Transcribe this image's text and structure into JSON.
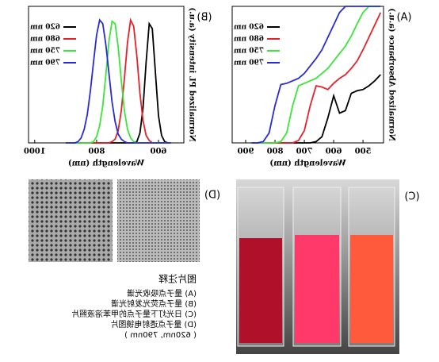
{
  "chart_data": [
    {
      "type": "line",
      "panel_label": "(A)",
      "xlabel": "Wavelength (nm)",
      "ylabel": "Normalized Absorbance (a.u.)",
      "x": [
        440,
        460,
        480,
        500,
        520,
        540,
        560,
        580,
        600,
        620,
        640,
        660,
        680,
        700,
        720,
        740,
        760,
        780,
        800,
        820,
        840,
        860,
        880
      ],
      "xlim": [
        430,
        946
      ],
      "xticks": [
        500,
        600,
        700,
        800,
        900
      ],
      "ylim": [
        0,
        1.1
      ],
      "legend": "upper right",
      "series": [
        {
          "name": "620 nm",
          "color": "#000000",
          "values": [
            0.55,
            0.5,
            0.46,
            0.43,
            0.42,
            0.4,
            0.26,
            0.24,
            0.38,
            0.2,
            0.05,
            0.01,
            0,
            0,
            0,
            0,
            0,
            0,
            0,
            0,
            0,
            0,
            0
          ]
        },
        {
          "name": "680 nm",
          "color": "#e8202a",
          "values": [
            1.05,
            0.95,
            0.85,
            0.75,
            0.66,
            0.6,
            0.55,
            0.52,
            0.48,
            0.43,
            0.45,
            0.46,
            0.3,
            0.1,
            0.02,
            0,
            0,
            0,
            0,
            0,
            0,
            0,
            0
          ]
        },
        {
          "name": "750 nm",
          "color": "#39e639",
          "values": [
            1.1,
            1.1,
            1.1,
            1.05,
            0.96,
            0.86,
            0.78,
            0.72,
            0.66,
            0.6,
            0.56,
            0.52,
            0.5,
            0.48,
            0.46,
            0.3,
            0.08,
            0.01,
            0,
            0,
            0,
            0,
            0
          ]
        },
        {
          "name": "790 nm",
          "color": "#2a2ad8",
          "values": [
            1.1,
            1.1,
            1.1,
            1.1,
            1.1,
            1.1,
            1.1,
            1.05,
            0.95,
            0.85,
            0.75,
            0.68,
            0.62,
            0.56,
            0.52,
            0.5,
            0.48,
            0.47,
            0.3,
            0.08,
            0.01,
            0,
            0
          ]
        }
      ]
    },
    {
      "type": "line",
      "panel_label": "(B)",
      "xlabel": "Wavelength (nm)",
      "ylabel": "Normalized PL intensity (a.u.)",
      "x": [
        560,
        570,
        580,
        590,
        600,
        610,
        620,
        630,
        640,
        650,
        660,
        670,
        680,
        690,
        700,
        710,
        720,
        730,
        740,
        750,
        760,
        770,
        780,
        790,
        800,
        810,
        820,
        830,
        840,
        850,
        860,
        870,
        880,
        890,
        900
      ],
      "xlim": [
        518,
        1020
      ],
      "xticks": [
        600,
        800,
        1000
      ],
      "ylim": [
        0,
        1.1
      ],
      "legend": "upper right",
      "series": [
        {
          "name": "620 nm",
          "color": "#000000",
          "values": [
            0,
            0,
            0.01,
            0.06,
            0.22,
            0.57,
            0.92,
            0.96,
            0.65,
            0.28,
            0.08,
            0.01,
            0,
            0,
            0,
            0,
            0,
            0,
            0,
            0,
            0,
            0,
            0,
            0,
            0,
            0,
            0,
            0,
            0,
            0,
            0,
            0,
            0,
            0,
            0
          ]
        },
        {
          "name": "680 nm",
          "color": "#e8202a",
          "values": [
            0,
            0,
            0,
            0,
            0,
            0,
            0,
            0.02,
            0.06,
            0.18,
            0.4,
            0.7,
            0.94,
            0.99,
            0.81,
            0.52,
            0.26,
            0.1,
            0.03,
            0.01,
            0,
            0,
            0,
            0,
            0,
            0,
            0,
            0,
            0,
            0,
            0,
            0,
            0,
            0,
            0
          ]
        },
        {
          "name": "750 nm",
          "color": "#39e639",
          "values": [
            0,
            0,
            0,
            0,
            0,
            0,
            0,
            0,
            0,
            0,
            0,
            0,
            0.01,
            0.04,
            0.11,
            0.26,
            0.5,
            0.77,
            0.96,
            0.98,
            0.82,
            0.55,
            0.3,
            0.14,
            0.05,
            0.01,
            0,
            0,
            0,
            0,
            0,
            0,
            0,
            0,
            0
          ]
        },
        {
          "name": "790 nm",
          "color": "#2a2ad8",
          "values": [
            0,
            0,
            0,
            0,
            0,
            0,
            0,
            0,
            0,
            0,
            0,
            0,
            0,
            0,
            0,
            0.01,
            0.03,
            0.07,
            0.17,
            0.33,
            0.56,
            0.79,
            0.96,
            0.99,
            0.87,
            0.65,
            0.42,
            0.23,
            0.11,
            0.04,
            0.01,
            0,
            0,
            0,
            0
          ]
        }
      ]
    }
  ],
  "photo": {
    "panel_label": "(C)"
  },
  "tem": {
    "panel_label": "(D)"
  },
  "caption": {
    "title": "图片注释",
    "lines": [
      "(A) 量子点吸收光谱",
      "(B) 量子点荧光发射光谱",
      "(C) 日光灯下量子点的甲苯溶液照片",
      "(D) 量子点透射电镜图片",
      "( 620nm, 790nm )"
    ]
  }
}
